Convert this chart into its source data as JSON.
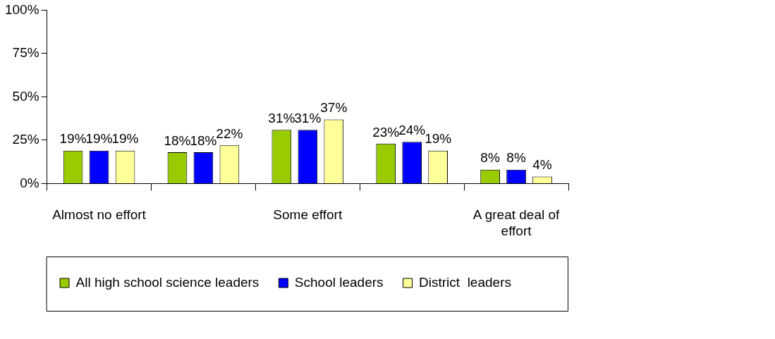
{
  "chart_data": {
    "type": "bar",
    "categories": [
      "Almost no effort",
      null,
      "Some effort",
      null,
      "A great deal of effort"
    ],
    "series": [
      {
        "name": "All high school science leaders",
        "color": "#99cc00",
        "values": [
          19,
          18,
          31,
          23,
          8
        ],
        "value_labels": [
          "19%",
          "18%",
          "31%",
          "23%",
          "8%"
        ]
      },
      {
        "name": "School leaders",
        "color": "#0000ff",
        "values": [
          19,
          18,
          31,
          24,
          8
        ],
        "value_labels": [
          "19%",
          "18%",
          "31%",
          "24%",
          "8%"
        ]
      },
      {
        "name": "District  leaders",
        "color": "#ffff99",
        "values": [
          19,
          22,
          37,
          19,
          4
        ],
        "value_labels": [
          "19%",
          "22%",
          "37%",
          "19%",
          "4%"
        ]
      }
    ],
    "ylim": [
      0,
      100
    ],
    "yticks": [
      {
        "value": 0,
        "label": "0%"
      },
      {
        "value": 25,
        "label": "25%"
      },
      {
        "value": 50,
        "label": "50%"
      },
      {
        "value": 75,
        "label": "75%"
      },
      {
        "value": 100,
        "label": "100%"
      }
    ],
    "grid": false,
    "legend": "bottom"
  }
}
